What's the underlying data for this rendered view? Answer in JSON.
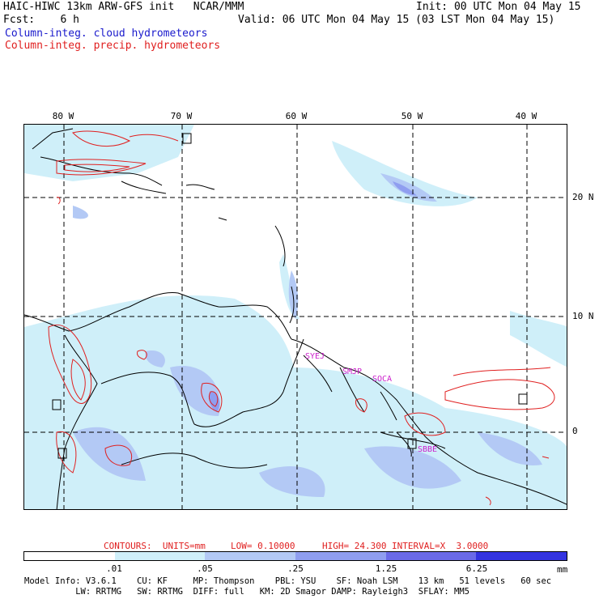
{
  "header": {
    "line1_left": "HAIC-HIWC 13km ARW-GFS init   NCAR/MMM",
    "line1_right": "Init: 00 UTC Mon 04 May 15",
    "line2_left": "Fcst:    6 h",
    "line2_right": "Valid: 06 UTC Mon 04 May 15 (03 LST Mon 04 May 15)",
    "field1": "Column-integ. cloud hydrometeors",
    "field2": "Column-integ. precip. hydrometeors"
  },
  "axes": {
    "lon_labels": [
      "80 W",
      "70 W",
      "60 W",
      "50 W",
      "40 W"
    ],
    "lat_labels": [
      "20 N",
      "10 N",
      "0"
    ]
  },
  "stations": [
    "SYEJ",
    "SMJP",
    "SOCA",
    "SBBE"
  ],
  "contours": {
    "units_label": "CONTOURS:  UNITS=mm",
    "low_label": "LOW= 0.10000",
    "high_label": "HIGH= 24.300",
    "interval_label": "INTERVAL=X  3.0000"
  },
  "legend": {
    "ticks": [
      ".01",
      ".05",
      ".25",
      "1.25",
      "6.25"
    ],
    "unit": "mm",
    "colors": [
      "#ffffff",
      "#cfeff9",
      "#b3c9f5",
      "#8f9ef0",
      "#6a6ae8",
      "#3333e0",
      "#0a0ad8"
    ]
  },
  "footer": {
    "line1": "Model Info: V3.6.1    CU: KF     MP: Thompson    PBL: YSU    SF: Noah LSM    13 km   51 levels   60 sec",
    "line2": "          LW: RRTMG   SW: RRTMG  DIFF: full   KM: 2D Smagor DAMP: Rayleigh3  SFLAY: MM5"
  }
}
